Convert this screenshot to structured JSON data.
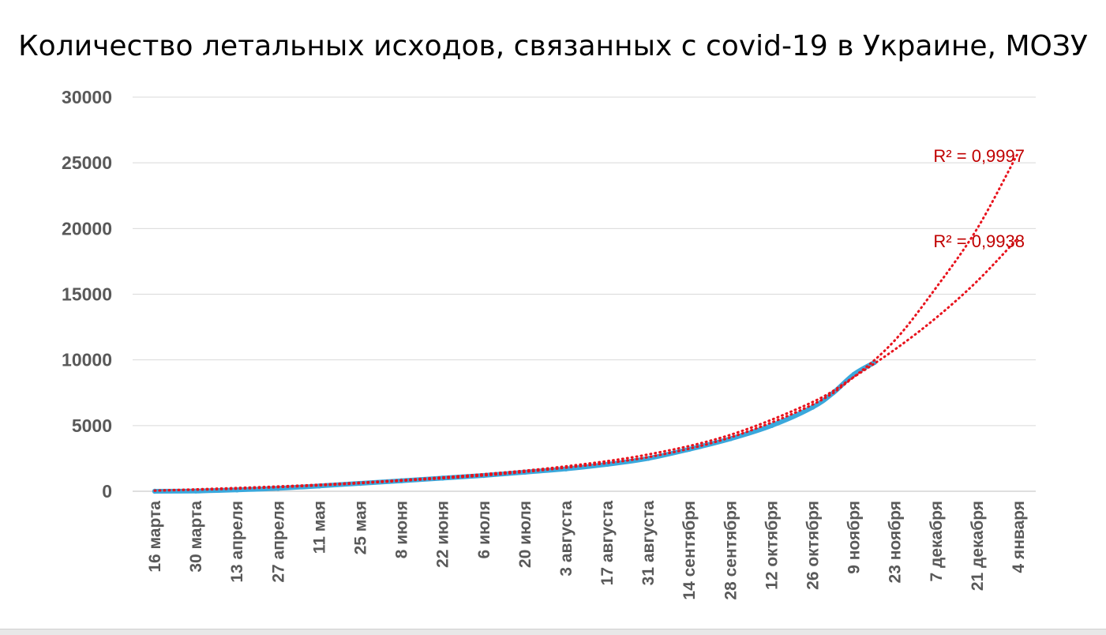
{
  "chart_data": {
    "type": "line",
    "title": "Количество летальных исходов, связанных с covid-19 в Украине, МОЗУ",
    "xlabel": "",
    "ylabel": "",
    "ylim": [
      0,
      30000
    ],
    "yticks": [
      "0",
      "5000",
      "10000",
      "15000",
      "20000",
      "25000",
      "30000"
    ],
    "x_tick_labels": [
      "16 марта",
      "30 марта",
      "13 апреля",
      "27 апреля",
      "11 мая",
      "25 мая",
      "8 июня",
      "22 июня",
      "6 июля",
      "20 июля",
      "3 августа",
      "17 августа",
      "31 августа",
      "14 сентября",
      "28 сентября",
      "12 октября",
      "26 октября",
      "9 ноября",
      "23 ноября",
      "7 декабря",
      "21 декабря",
      "4 января"
    ],
    "x_range": [
      "16 марта",
      "4 января"
    ],
    "grid": true,
    "legend": "none",
    "series": [
      {
        "color": "#3aa8dc",
        "x": [
          "16 марта",
          "30 марта",
          "13 апреля",
          "27 апреля",
          "11 мая",
          "25 мая",
          "8 июня",
          "22 июня",
          "6 июля",
          "20 июля",
          "3 августа",
          "17 августа",
          "31 августа",
          "14 сентября",
          "28 сентября",
          "12 октября",
          "26 октября",
          "2 ноября",
          "9 ноября",
          "16 ноября"
        ],
        "values": [
          0,
          20,
          100,
          220,
          400,
          600,
          800,
          1000,
          1200,
          1450,
          1700,
          2050,
          2500,
          3200,
          4000,
          5000,
          6400,
          7500,
          8900,
          9800
        ]
      }
    ],
    "trendlines": [
      {
        "color": "#e8131d",
        "label": "R² = 0,9997",
        "x": [
          "16 марта",
          "13 апреля",
          "11 мая",
          "8 июня",
          "6 июля",
          "3 августа",
          "31 августа",
          "28 сентября",
          "26 октября",
          "9 ноября",
          "23 ноября",
          "7 декабря",
          "21 декабря",
          "4 января"
        ],
        "values": [
          50,
          200,
          450,
          800,
          1200,
          1800,
          2600,
          4100,
          6600,
          8700,
          11500,
          15500,
          20000,
          25800
        ]
      },
      {
        "color": "#e8131d",
        "label": "R² = 0,9938",
        "x": [
          "16 марта",
          "13 апреля",
          "11 мая",
          "8 июня",
          "6 июля",
          "3 августа",
          "31 августа",
          "28 сентября",
          "26 октября",
          "9 ноября",
          "23 ноября",
          "7 декабря",
          "21 декабря",
          "4 января"
        ],
        "values": [
          50,
          250,
          500,
          850,
          1300,
          1900,
          2800,
          4300,
          6800,
          8700,
          10800,
          13200,
          16000,
          19300
        ]
      }
    ],
    "colors": {
      "series": "#3aa8dc",
      "trendline": "#e8131d",
      "trend_label": "#c00000",
      "grid": "#d9d9d9",
      "tick_text": "#595959"
    }
  }
}
